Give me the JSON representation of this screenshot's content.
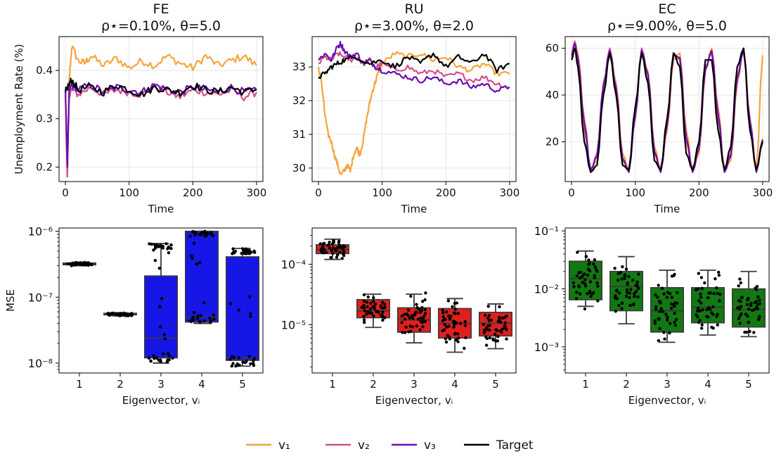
{
  "colors": {
    "v1": "#f5a43a",
    "v2": "#d2508a",
    "v3": "#6a0fb0",
    "target": "#000000",
    "fe_box": "#1616e6",
    "ru_box": "#e01e1e",
    "ec_box": "#127812"
  },
  "legend": {
    "placement": "bottom-center",
    "items": [
      {
        "key": "v1",
        "label": "v₁"
      },
      {
        "key": "v2",
        "label": "v₂"
      },
      {
        "key": "v3",
        "label": "v₃"
      },
      {
        "key": "target",
        "label": "Target"
      }
    ]
  },
  "chart_data": [
    {
      "id": "fe_line",
      "type": "line",
      "title_line1": "FE",
      "title_line2": "ρ⋆=0.10%, θ=5.0",
      "xlabel": "Time",
      "ylabel": "Unemployment Rate (%)",
      "xlim": [
        -10,
        310
      ],
      "ylim": [
        0.17,
        0.47
      ],
      "xticks": [
        0,
        100,
        200,
        300
      ],
      "xtick_labels": [
        "0",
        "100",
        "200",
        "300"
      ],
      "yticks": [
        0.2,
        0.3,
        0.4
      ],
      "ytick_labels": [
        "0.2",
        "0.3",
        "0.4"
      ],
      "grid": true,
      "series": [
        {
          "key": "v1",
          "x": [
            0,
            3,
            6,
            10,
            20,
            30,
            40,
            60,
            80,
            100,
            120,
            140,
            160,
            180,
            200,
            220,
            240,
            260,
            280,
            300
          ],
          "y": [
            0.36,
            0.18,
            0.38,
            0.45,
            0.42,
            0.415,
            0.43,
            0.41,
            0.425,
            0.405,
            0.42,
            0.41,
            0.43,
            0.415,
            0.405,
            0.43,
            0.41,
            0.42,
            0.43,
            0.41
          ]
        },
        {
          "key": "v2",
          "x": [
            0,
            3,
            6,
            10,
            20,
            40,
            60,
            80,
            100,
            120,
            140,
            160,
            180,
            200,
            220,
            240,
            260,
            280,
            300
          ],
          "y": [
            0.355,
            0.18,
            0.35,
            0.36,
            0.35,
            0.365,
            0.35,
            0.36,
            0.355,
            0.35,
            0.365,
            0.355,
            0.345,
            0.36,
            0.355,
            0.35,
            0.36,
            0.345,
            0.355
          ]
        },
        {
          "key": "v3",
          "x": [
            0,
            3,
            6,
            10,
            20,
            40,
            60,
            80,
            100,
            120,
            140,
            160,
            180,
            200,
            220,
            240,
            260,
            280,
            300
          ],
          "y": [
            0.36,
            0.2,
            0.36,
            0.37,
            0.36,
            0.37,
            0.355,
            0.365,
            0.36,
            0.355,
            0.37,
            0.36,
            0.355,
            0.365,
            0.36,
            0.355,
            0.365,
            0.355,
            0.36
          ]
        },
        {
          "key": "target",
          "x": [
            0,
            5,
            10,
            20,
            40,
            60,
            80,
            100,
            120,
            140,
            160,
            180,
            200,
            220,
            240,
            260,
            280,
            300
          ],
          "y": [
            0.355,
            0.37,
            0.38,
            0.36,
            0.365,
            0.355,
            0.37,
            0.36,
            0.35,
            0.365,
            0.36,
            0.355,
            0.37,
            0.36,
            0.355,
            0.365,
            0.355,
            0.36
          ]
        }
      ]
    },
    {
      "id": "ru_line",
      "type": "line",
      "title_line1": "RU",
      "title_line2": "ρ⋆=3.00%, θ=2.0",
      "xlabel": "Time",
      "ylabel": "",
      "xlim": [
        -10,
        310
      ],
      "ylim": [
        29.6,
        33.9
      ],
      "xticks": [
        0,
        100,
        200,
        300
      ],
      "xtick_labels": [
        "0",
        "100",
        "200",
        "300"
      ],
      "yticks": [
        30,
        31,
        32,
        33
      ],
      "ytick_labels": [
        "30",
        "31",
        "32",
        "33"
      ],
      "grid": true,
      "series": [
        {
          "key": "v1",
          "x": [
            0,
            5,
            10,
            15,
            20,
            25,
            30,
            35,
            40,
            45,
            50,
            55,
            60,
            65,
            70,
            75,
            80,
            85,
            90,
            95,
            100,
            120,
            140,
            160,
            180,
            200,
            220,
            240,
            260,
            280,
            300
          ],
          "y": [
            33.0,
            32.5,
            31.6,
            31.0,
            30.8,
            30.4,
            30.1,
            29.8,
            29.9,
            30.1,
            29.9,
            30.4,
            30.6,
            30.4,
            30.8,
            31.4,
            31.9,
            32.3,
            32.6,
            32.9,
            33.1,
            33.4,
            33.3,
            33.4,
            33.2,
            33.3,
            33.0,
            32.9,
            33.1,
            32.8,
            32.8
          ]
        },
        {
          "key": "v2",
          "x": [
            0,
            10,
            20,
            30,
            40,
            50,
            60,
            70,
            80,
            90,
            100,
            120,
            140,
            160,
            180,
            200,
            220,
            240,
            260,
            280,
            300
          ],
          "y": [
            33.1,
            33.3,
            33.2,
            33.4,
            33.3,
            33.2,
            33.3,
            33.1,
            33.2,
            33.0,
            33.1,
            32.9,
            33.0,
            32.8,
            32.9,
            32.7,
            32.8,
            32.6,
            32.7,
            32.5,
            32.4
          ]
        },
        {
          "key": "v3",
          "x": [
            0,
            10,
            20,
            30,
            35,
            40,
            50,
            60,
            70,
            80,
            90,
            100,
            120,
            140,
            160,
            180,
            200,
            220,
            240,
            260,
            280,
            300
          ],
          "y": [
            33.2,
            33.4,
            33.2,
            33.6,
            33.7,
            33.5,
            33.3,
            33.4,
            33.1,
            33.2,
            33.0,
            32.9,
            32.8,
            32.7,
            32.6,
            32.7,
            32.5,
            32.6,
            32.4,
            32.5,
            32.3,
            32.4
          ]
        },
        {
          "key": "target",
          "x": [
            0,
            10,
            20,
            30,
            40,
            60,
            80,
            100,
            120,
            140,
            160,
            180,
            200,
            220,
            240,
            260,
            280,
            300
          ],
          "y": [
            32.7,
            32.8,
            33.0,
            33.1,
            33.2,
            33.3,
            33.1,
            33.2,
            33.0,
            33.3,
            33.1,
            33.4,
            33.0,
            33.3,
            33.1,
            33.4,
            32.9,
            33.1
          ]
        }
      ]
    },
    {
      "id": "ec_line",
      "type": "line",
      "title_line1": "EC",
      "title_line2": "ρ⋆=9.00%, θ=5.0",
      "xlabel": "Time",
      "ylabel": "",
      "xlim": [
        -10,
        310
      ],
      "ylim": [
        3,
        65
      ],
      "xticks": [
        0,
        100,
        200,
        300
      ],
      "xtick_labels": [
        "0",
        "100",
        "200",
        "300"
      ],
      "yticks": [
        20,
        40,
        60
      ],
      "ytick_labels": [
        "20",
        "40",
        "60"
      ],
      "grid": true,
      "series_note": "oscillation peaks ~60, troughs ~7",
      "series": [
        {
          "key": "v1",
          "x": [
            0,
            5,
            10,
            20,
            30,
            40,
            50,
            60,
            70,
            80,
            90,
            100,
            110,
            120,
            130,
            140,
            150,
            160,
            170,
            180,
            190,
            200,
            210,
            220,
            230,
            240,
            250,
            260,
            270,
            280,
            290,
            300
          ],
          "y": [
            58,
            63,
            58,
            30,
            8,
            12,
            42,
            60,
            45,
            15,
            8,
            30,
            59,
            50,
            18,
            8,
            25,
            55,
            58,
            25,
            8,
            15,
            50,
            60,
            35,
            8,
            12,
            45,
            60,
            30,
            8,
            57
          ]
        },
        {
          "key": "v2",
          "x": [
            0,
            5,
            10,
            20,
            30,
            40,
            50,
            60,
            70,
            80,
            90,
            100,
            110,
            120,
            130,
            140,
            150,
            160,
            170,
            180,
            190,
            200,
            210,
            220,
            230,
            240,
            250,
            260,
            270,
            280,
            290,
            300
          ],
          "y": [
            56,
            63,
            55,
            25,
            7,
            15,
            45,
            60,
            42,
            12,
            8,
            32,
            60,
            48,
            15,
            8,
            28,
            58,
            55,
            20,
            8,
            18,
            52,
            58,
            30,
            8,
            15,
            48,
            60,
            28,
            8,
            20
          ]
        },
        {
          "key": "v3",
          "x": [
            0,
            5,
            10,
            20,
            30,
            40,
            50,
            60,
            70,
            80,
            90,
            100,
            110,
            120,
            130,
            140,
            150,
            160,
            170,
            180,
            190,
            200,
            210,
            220,
            230,
            240,
            250,
            260,
            270,
            280,
            290,
            300
          ],
          "y": [
            57,
            62,
            56,
            28,
            8,
            14,
            44,
            59,
            43,
            13,
            7,
            31,
            59,
            49,
            16,
            7,
            27,
            57,
            56,
            22,
            7,
            17,
            51,
            59,
            32,
            7,
            14,
            47,
            59,
            29,
            7,
            21
          ]
        },
        {
          "key": "target",
          "x": [
            0,
            5,
            10,
            20,
            30,
            40,
            50,
            60,
            70,
            80,
            90,
            100,
            110,
            120,
            130,
            140,
            150,
            160,
            170,
            180,
            190,
            200,
            210,
            220,
            230,
            240,
            250,
            260,
            270,
            280,
            290,
            300
          ],
          "y": [
            55,
            60,
            52,
            20,
            7,
            10,
            40,
            58,
            40,
            10,
            8,
            35,
            58,
            45,
            12,
            8,
            30,
            58,
            52,
            15,
            8,
            20,
            55,
            55,
            25,
            8,
            18,
            52,
            60,
            25,
            8,
            20
          ]
        }
      ]
    },
    {
      "id": "fe_box",
      "type": "box",
      "xlabel": "Eigenvector, vᵢ",
      "ylabel": "MSE",
      "log": true,
      "ylim_log10": [
        -8.15,
        -5.95
      ],
      "categories": [
        "1",
        "2",
        "3",
        "4",
        "5"
      ],
      "yticks_log10": [
        -8,
        -7,
        -6
      ],
      "ytick_labels": [
        "10⁻⁸",
        "10⁻⁷",
        "10⁻⁶"
      ],
      "grid": false,
      "box_key": "fe_box",
      "boxes": [
        {
          "q1": 3.1e-07,
          "median": 3.2e-07,
          "q3": 3.3e-07,
          "whislo": 3e-07,
          "whishi": 3.4e-07
        },
        {
          "q1": 5.4e-08,
          "median": 5.5e-08,
          "q3": 5.7e-08,
          "whislo": 5.2e-08,
          "whishi": 5.8e-08
        },
        {
          "q1": 1.2e-08,
          "median": 2.4e-08,
          "q3": 2.1e-07,
          "whislo": 1e-08,
          "whishi": 6.5e-07
        },
        {
          "q1": 4.2e-08,
          "median": 5e-08,
          "q3": 1e-06,
          "whislo": 4e-08,
          "whishi": 1e-06
        },
        {
          "q1": 1.1e-08,
          "median": 1.2e-08,
          "q3": 4.1e-07,
          "whislo": 9e-09,
          "whishi": 5.5e-07
        }
      ]
    },
    {
      "id": "ru_box",
      "type": "box",
      "xlabel": "Eigenvector, vᵢ",
      "ylabel": "",
      "log": true,
      "ylim_log10": [
        -5.8,
        -3.4
      ],
      "categories": [
        "1",
        "2",
        "3",
        "4",
        "5"
      ],
      "yticks_log10": [
        -5,
        -4
      ],
      "ytick_labels": [
        "10⁻⁵",
        "10⁻⁴"
      ],
      "grid": false,
      "box_key": "ru_box",
      "boxes": [
        {
          "q1": 0.00015,
          "median": 0.000175,
          "q3": 0.00021,
          "whislo": 0.00012,
          "whishi": 0.00026
        },
        {
          "q1": 1.3e-05,
          "median": 1.7e-05,
          "q3": 2.6e-05,
          "whislo": 9e-06,
          "whishi": 3.2e-05
        },
        {
          "q1": 7.5e-06,
          "median": 1.2e-05,
          "q3": 1.9e-05,
          "whislo": 5e-06,
          "whishi": 3.2e-05
        },
        {
          "q1": 6e-06,
          "median": 1.05e-05,
          "q3": 1.85e-05,
          "whislo": 3.5e-06,
          "whishi": 2.7e-05
        },
        {
          "q1": 6.5e-06,
          "median": 1.05e-05,
          "q3": 1.6e-05,
          "whislo": 4e-06,
          "whishi": 2.2e-05
        }
      ]
    },
    {
      "id": "ec_box",
      "type": "box",
      "xlabel": "Eigenvector, vᵢ",
      "ylabel": "",
      "log": true,
      "ylim_log10": [
        -3.45,
        -0.95
      ],
      "categories": [
        "1",
        "2",
        "3",
        "4",
        "5"
      ],
      "yticks_log10": [
        -3,
        -2,
        -1
      ],
      "ytick_labels": [
        "10⁻³",
        "10⁻²",
        "10⁻¹"
      ],
      "grid": false,
      "box_key": "ec_box",
      "boxes": [
        {
          "q1": 0.0065,
          "median": 0.015,
          "q3": 0.03,
          "whislo": 0.005,
          "whishi": 0.045
        },
        {
          "q1": 0.0042,
          "median": 0.011,
          "q3": 0.02,
          "whislo": 0.0025,
          "whishi": 0.036
        },
        {
          "q1": 0.0018,
          "median": 0.0042,
          "q3": 0.0105,
          "whislo": 0.0012,
          "whishi": 0.021
        },
        {
          "q1": 0.0026,
          "median": 0.0048,
          "q3": 0.0105,
          "whislo": 0.0016,
          "whishi": 0.021
        },
        {
          "q1": 0.0022,
          "median": 0.0044,
          "q3": 0.01,
          "whislo": 0.0015,
          "whishi": 0.02
        }
      ]
    }
  ]
}
